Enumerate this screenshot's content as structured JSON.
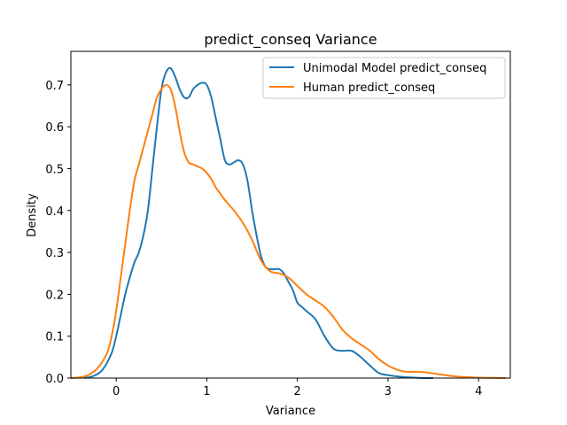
{
  "chart_data": {
    "type": "line",
    "title": "predict_conseq Variance",
    "xlabel": "Variance",
    "ylabel": "Density",
    "xlim": [
      -0.5,
      4.35
    ],
    "ylim": [
      0,
      0.78
    ],
    "xticks": [
      0,
      1,
      2,
      3,
      4
    ],
    "yticks": [
      0.0,
      0.1,
      0.2,
      0.3,
      0.4,
      0.5,
      0.6,
      0.7
    ],
    "ytick_labels": [
      "0.0",
      "0.1",
      "0.2",
      "0.3",
      "0.4",
      "0.5",
      "0.6",
      "0.7"
    ],
    "grid": false,
    "legend_position": "top-right",
    "series": [
      {
        "name": "Unimodal Model predict_conseq",
        "color": "#1f77b4",
        "x": [
          -0.35,
          -0.25,
          -0.15,
          -0.05,
          0.0,
          0.05,
          0.1,
          0.15,
          0.2,
          0.25,
          0.3,
          0.35,
          0.4,
          0.45,
          0.5,
          0.55,
          0.6,
          0.65,
          0.7,
          0.75,
          0.8,
          0.85,
          0.9,
          0.95,
          1.0,
          1.05,
          1.1,
          1.15,
          1.2,
          1.25,
          1.3,
          1.35,
          1.4,
          1.45,
          1.5,
          1.55,
          1.6,
          1.65,
          1.7,
          1.75,
          1.8,
          1.85,
          1.9,
          1.95,
          2.0,
          2.05,
          2.1,
          2.2,
          2.3,
          2.4,
          2.5,
          2.6,
          2.7,
          2.8,
          2.9,
          3.0,
          3.1,
          3.2,
          3.3,
          3.4,
          3.5
        ],
        "y": [
          0.0,
          0.005,
          0.02,
          0.06,
          0.1,
          0.15,
          0.2,
          0.24,
          0.275,
          0.3,
          0.34,
          0.4,
          0.5,
          0.6,
          0.69,
          0.73,
          0.74,
          0.72,
          0.69,
          0.67,
          0.67,
          0.69,
          0.7,
          0.705,
          0.7,
          0.67,
          0.62,
          0.57,
          0.52,
          0.51,
          0.515,
          0.52,
          0.51,
          0.47,
          0.4,
          0.34,
          0.29,
          0.265,
          0.26,
          0.26,
          0.26,
          0.25,
          0.23,
          0.21,
          0.18,
          0.17,
          0.16,
          0.14,
          0.1,
          0.07,
          0.065,
          0.065,
          0.05,
          0.03,
          0.012,
          0.007,
          0.004,
          0.002,
          0.001,
          0.0,
          0.0
        ]
      },
      {
        "name": "Human predict_conseq",
        "color": "#ff7f0e",
        "x": [
          -0.5,
          -0.4,
          -0.3,
          -0.2,
          -0.1,
          -0.05,
          0.0,
          0.05,
          0.1,
          0.15,
          0.2,
          0.25,
          0.3,
          0.35,
          0.4,
          0.45,
          0.5,
          0.55,
          0.6,
          0.65,
          0.7,
          0.75,
          0.8,
          0.85,
          0.9,
          0.95,
          1.0,
          1.05,
          1.1,
          1.15,
          1.2,
          1.3,
          1.4,
          1.5,
          1.6,
          1.7,
          1.8,
          1.9,
          2.0,
          2.1,
          2.2,
          2.3,
          2.4,
          2.5,
          2.6,
          2.7,
          2.8,
          2.9,
          3.0,
          3.1,
          3.2,
          3.3,
          3.4,
          3.5,
          3.6,
          3.7,
          3.8,
          3.9,
          4.0,
          4.1,
          4.2,
          4.3
        ],
        "y": [
          0.0,
          0.002,
          0.008,
          0.025,
          0.06,
          0.1,
          0.16,
          0.24,
          0.32,
          0.4,
          0.47,
          0.51,
          0.55,
          0.59,
          0.63,
          0.67,
          0.69,
          0.7,
          0.69,
          0.65,
          0.59,
          0.54,
          0.515,
          0.51,
          0.505,
          0.5,
          0.49,
          0.475,
          0.455,
          0.44,
          0.425,
          0.4,
          0.37,
          0.33,
          0.28,
          0.255,
          0.25,
          0.24,
          0.22,
          0.2,
          0.185,
          0.17,
          0.145,
          0.115,
          0.095,
          0.08,
          0.065,
          0.045,
          0.03,
          0.02,
          0.015,
          0.015,
          0.014,
          0.011,
          0.008,
          0.005,
          0.003,
          0.002,
          0.001,
          0.0005,
          0.0002,
          0.0
        ]
      }
    ]
  }
}
